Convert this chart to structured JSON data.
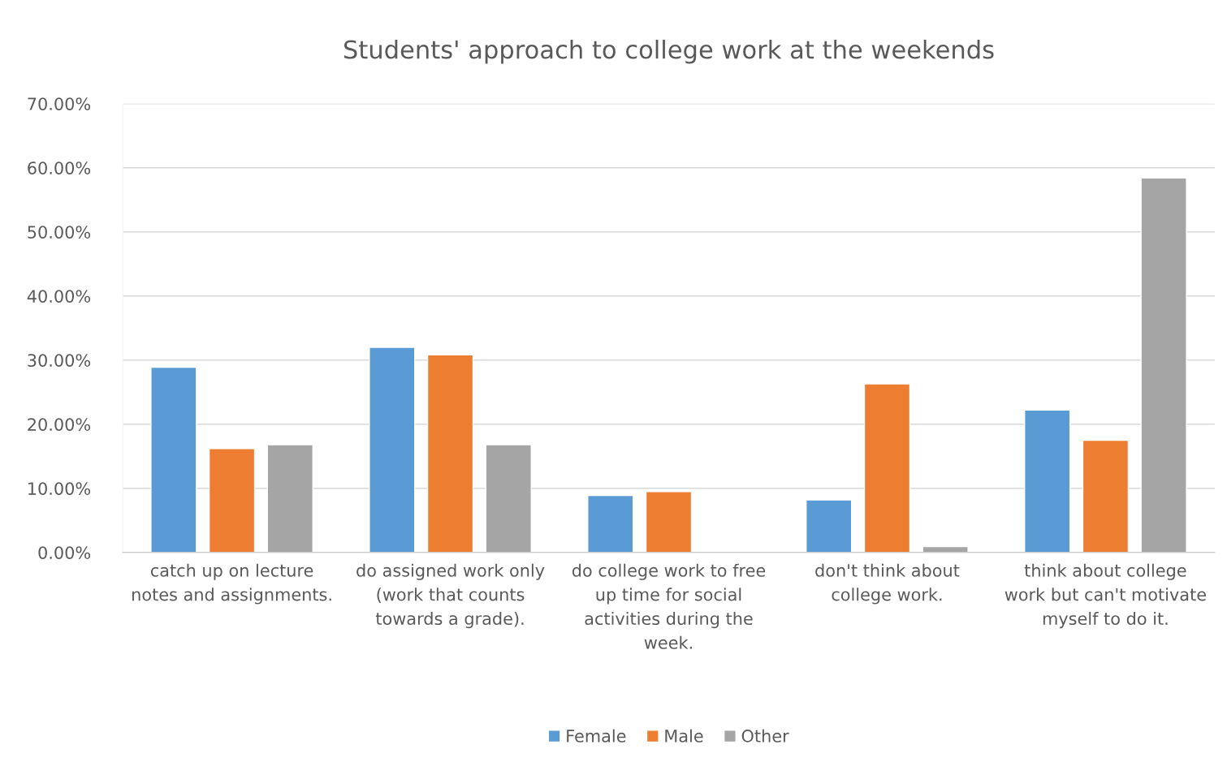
{
  "chart_data": {
    "type": "bar",
    "title": "Students' approach to college work at the weekends",
    "categories": [
      "catch up on lecture notes and assignments.",
      "do assigned work only (work that counts towards a grade).",
      "do college work to free up time for social activities during the week.",
      "don't think about college work.",
      "think about college work but can't motivate myself to do it."
    ],
    "series": [
      {
        "name": "Female",
        "color": "#5b9bd5",
        "values": [
          28.9,
          32.0,
          8.9,
          8.2,
          22.2
        ]
      },
      {
        "name": "Male",
        "color": "#ed7d31",
        "values": [
          16.2,
          30.8,
          9.5,
          26.3,
          17.5
        ]
      },
      {
        "name": "Other",
        "color": "#a5a5a5",
        "values": [
          16.8,
          16.8,
          null,
          0.9,
          58.4
        ]
      }
    ],
    "ylim": [
      0,
      70
    ],
    "yticks": [
      {
        "value": 0,
        "label": "0.00%"
      },
      {
        "value": 10,
        "label": "10.00%"
      },
      {
        "value": 20,
        "label": "20.00%"
      },
      {
        "value": 30,
        "label": "30.00%"
      },
      {
        "value": 40,
        "label": "40.00%"
      },
      {
        "value": 50,
        "label": "50.00%"
      },
      {
        "value": 60,
        "label": "60.00%"
      },
      {
        "value": 70,
        "label": "70.00%"
      }
    ],
    "grid": "y",
    "legend": "bottom"
  }
}
